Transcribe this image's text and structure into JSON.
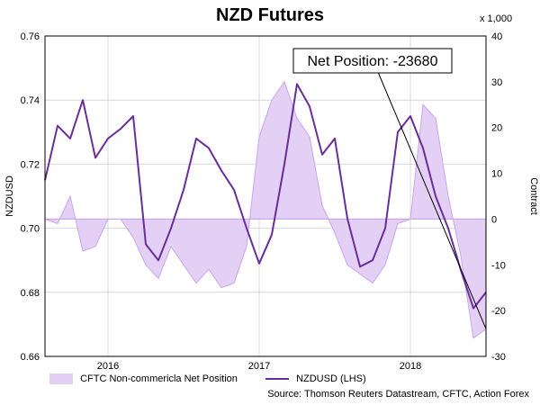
{
  "chart_data": {
    "type": "line",
    "title": "NZD Futures",
    "ylabel": "NZDUSD",
    "y2label": "Contract",
    "y2unit": "x 1,000",
    "ylim": [
      0.66,
      0.76
    ],
    "y2lim": [
      -30,
      40
    ],
    "yticks": [
      "0.76",
      "0.74",
      "0.72",
      "0.70",
      "0.68",
      "0.66"
    ],
    "y2ticks": [
      "40",
      "30",
      "20",
      "10",
      "0",
      "-10",
      "-20",
      "-30"
    ],
    "xticks": [
      "2016",
      "2017",
      "2018"
    ],
    "xlim": [
      "2015-08",
      "2018-07"
    ],
    "grid": true,
    "legend_position": "bottom-left",
    "annotation": "Net Position: -23680",
    "source": "Source: Thomson Reuters Datastream, CFTC, Action Forex",
    "colors": {
      "line": "#6a2e9a",
      "area_fill": "#e4cff5",
      "area_stroke": "#c9a6ec",
      "grid": "#d9d9d9"
    },
    "series": [
      {
        "name": "CFTC Non-commericla Net Position",
        "kind": "area",
        "axis": "right",
        "x": [
          "2015-08",
          "2015-09",
          "2015-10",
          "2015-11",
          "2015-12",
          "2016-01",
          "2016-02",
          "2016-03",
          "2016-04",
          "2016-05",
          "2016-06",
          "2016-07",
          "2016-08",
          "2016-09",
          "2016-10",
          "2016-11",
          "2016-12",
          "2017-01",
          "2017-02",
          "2017-03",
          "2017-04",
          "2017-05",
          "2017-06",
          "2017-07",
          "2017-08",
          "2017-09",
          "2017-10",
          "2017-11",
          "2017-12",
          "2018-01",
          "2018-02",
          "2018-03",
          "2018-04",
          "2018-05",
          "2018-06",
          "2018-07"
        ],
        "values": [
          0,
          -1,
          5,
          -7,
          -6,
          0,
          0,
          -4,
          -10,
          -13,
          -6,
          -10,
          -14,
          -11,
          -15,
          -14,
          -6,
          18,
          26,
          30,
          22,
          18,
          3,
          -3,
          -10,
          -12,
          -14,
          -10,
          -1,
          0,
          25,
          22,
          5,
          -8,
          -26,
          -24
        ]
      },
      {
        "name": "NZDUSD (LHS)",
        "kind": "line",
        "axis": "left",
        "x": [
          "2015-08",
          "2015-09",
          "2015-10",
          "2015-11",
          "2015-12",
          "2016-01",
          "2016-02",
          "2016-03",
          "2016-04",
          "2016-05",
          "2016-06",
          "2016-07",
          "2016-08",
          "2016-09",
          "2016-10",
          "2016-11",
          "2016-12",
          "2017-01",
          "2017-02",
          "2017-03",
          "2017-04",
          "2017-05",
          "2017-06",
          "2017-07",
          "2017-08",
          "2017-09",
          "2017-10",
          "2017-11",
          "2017-12",
          "2018-01",
          "2018-02",
          "2018-03",
          "2018-04",
          "2018-05",
          "2018-06",
          "2018-07"
        ],
        "values": [
          0.715,
          0.732,
          0.728,
          0.74,
          0.722,
          0.728,
          0.731,
          0.735,
          0.695,
          0.69,
          0.7,
          0.712,
          0.728,
          0.725,
          0.718,
          0.712,
          0.7,
          0.689,
          0.698,
          0.72,
          0.745,
          0.738,
          0.723,
          0.728,
          0.703,
          0.688,
          0.69,
          0.7,
          0.73,
          0.735,
          0.725,
          0.71,
          0.7,
          0.687,
          0.675,
          0.68
        ]
      }
    ]
  },
  "legend": {
    "area_label": "CFTC Non-commericla Net Position",
    "line_label": "NZDUSD (LHS)"
  }
}
